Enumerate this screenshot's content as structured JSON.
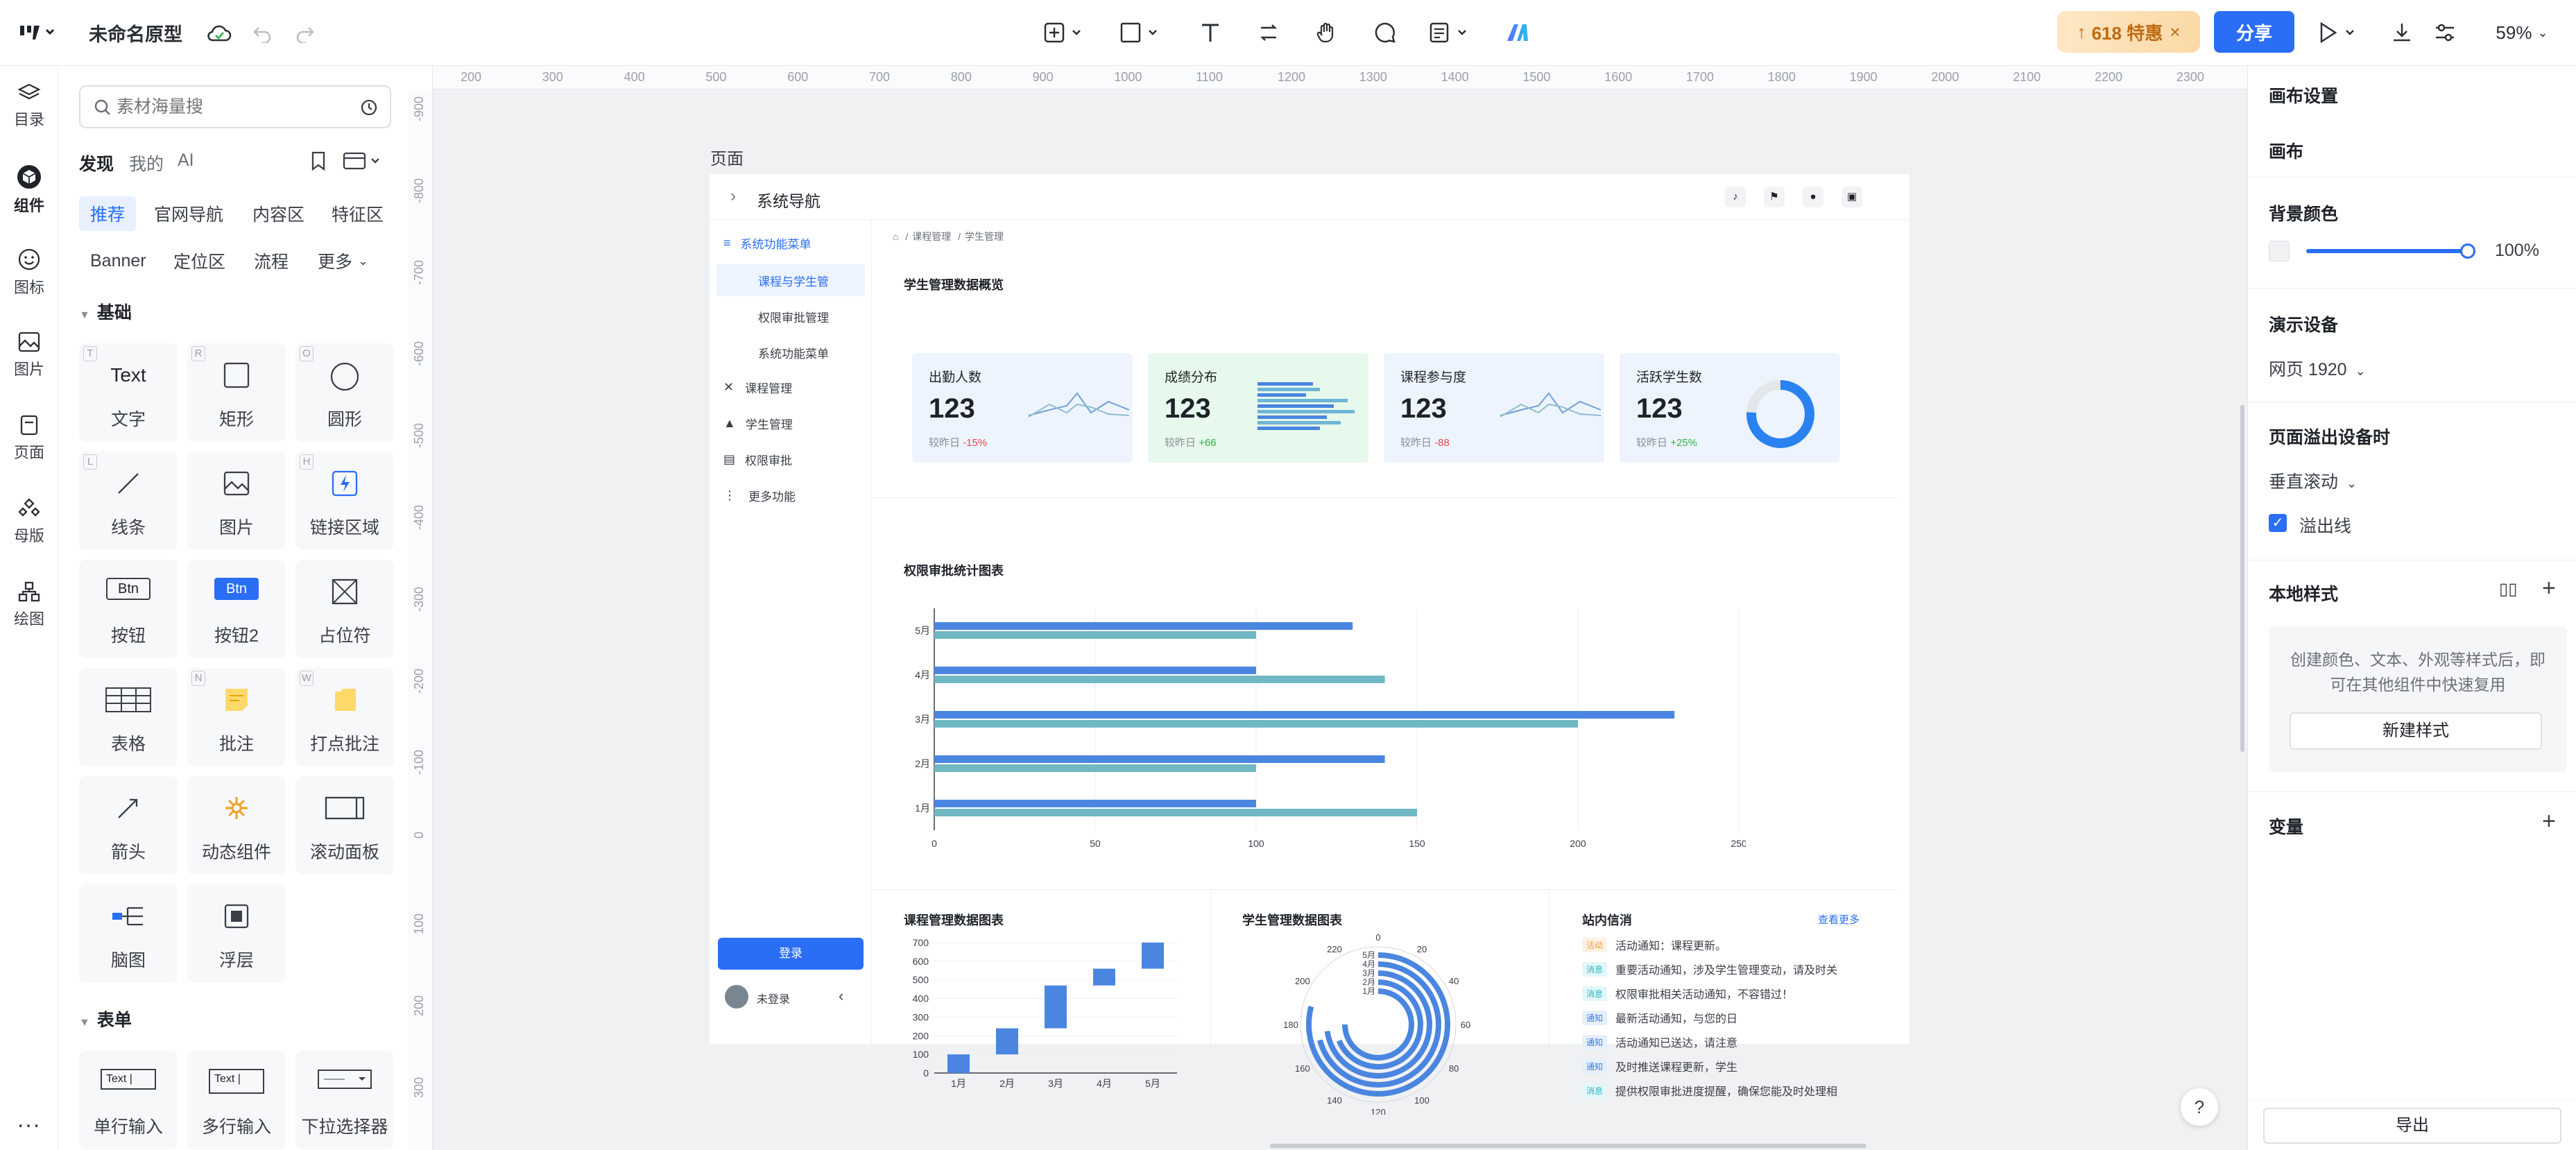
{
  "topbar": {
    "doc_title": "未命名原型",
    "promo_label": "618 特惠",
    "share_label": "分享",
    "zoom_label": "59%",
    "colors": {
      "accent": "#2a6ef5",
      "promo_bg": "#fde7c4",
      "promo_text": "#d9822b"
    }
  },
  "leftnav": {
    "items": [
      {
        "label": "目录",
        "icon": "layers-icon"
      },
      {
        "label": "组件",
        "icon": "cube-icon"
      },
      {
        "label": "图标",
        "icon": "smile-icon"
      },
      {
        "label": "图片",
        "icon": "image-icon"
      },
      {
        "label": "页面",
        "icon": "page-icon"
      },
      {
        "label": "母版",
        "icon": "master-icon"
      },
      {
        "label": "绘图",
        "icon": "draw-icon"
      }
    ],
    "more_label": "..."
  },
  "panel": {
    "search_placeholder": "素材海量搜",
    "tabs": [
      "发现",
      "我的",
      "AI"
    ],
    "chips_row1": [
      "推荐",
      "官网导航",
      "内容区",
      "特征区"
    ],
    "chips_row2": [
      "Banner",
      "定位区",
      "流程",
      "更多"
    ],
    "section_basic": "基础",
    "tiles": [
      {
        "icon_text": "Text",
        "label": "文字",
        "key": "T"
      },
      {
        "label": "矩形",
        "key": "R"
      },
      {
        "label": "圆形",
        "key": "O"
      },
      {
        "label": "线条",
        "key": "L"
      },
      {
        "label": "图片",
        "key": ""
      },
      {
        "label": "链接区域",
        "key": "H"
      },
      {
        "icon_text": "Btn",
        "label": "按钮",
        "key": ""
      },
      {
        "icon_text": "Btn",
        "label": "按钮2",
        "key": ""
      },
      {
        "label": "占位符",
        "key": ""
      },
      {
        "label": "表格",
        "key": ""
      },
      {
        "label": "批注",
        "key": "N"
      },
      {
        "label": "打点批注",
        "key": "W"
      },
      {
        "label": "箭头",
        "key": ""
      },
      {
        "label": "动态组件",
        "key": ""
      },
      {
        "label": "滚动面板",
        "key": ""
      },
      {
        "label": "脑图",
        "key": ""
      },
      {
        "label": "浮层",
        "key": ""
      }
    ],
    "section_form": "表单",
    "form_tiles": [
      {
        "icon_text": "Text |",
        "label": "单行输入"
      },
      {
        "icon_text": "Text |",
        "label": "多行输入"
      },
      {
        "label": "下拉选择器"
      }
    ]
  },
  "rulers": {
    "h_ticks": [
      "200",
      "300",
      "400",
      "500",
      "600",
      "700",
      "800",
      "900",
      "1000",
      "1100",
      "1200",
      "1300",
      "1400",
      "1500",
      "1600",
      "1700",
      "1800",
      "1900",
      "2000",
      "2100",
      "2200",
      "2300"
    ],
    "v_ticks": [
      "-900",
      "-800",
      "-700",
      "-600",
      "-500",
      "-400",
      "-300",
      "-200",
      "-100",
      "0",
      "100",
      "200",
      "300"
    ]
  },
  "canvas": {
    "page_label": "页面",
    "artboard": {
      "header_title": "系统导航",
      "sidebar": {
        "items": [
          {
            "label": "系统功能菜单",
            "active": true,
            "icon": "menu-icon"
          },
          {
            "label": "课程与学生管",
            "sub": true,
            "selected": true
          },
          {
            "label": "权限审批管理",
            "sub": true
          },
          {
            "label": "系统功能菜单",
            "sub": true
          },
          {
            "label": "课程管理",
            "icon": "close-icon"
          },
          {
            "label": "学生管理",
            "icon": "graduation-cap-icon"
          },
          {
            "label": "权限审批",
            "icon": "list-icon"
          },
          {
            "label": "更多功能",
            "icon": "more-vertical-icon"
          }
        ],
        "login_button": "登录",
        "user_label": "未登录"
      },
      "breadcrumb": [
        "课程管理",
        "学生管理"
      ],
      "overview_title": "学生管理数据概览",
      "cards": [
        {
          "title": "出勤人数",
          "value": "123",
          "compare": "较昨日",
          "delta": "-15%",
          "delta_color": "#e5484d",
          "bg": "#eef4fd"
        },
        {
          "title": "成绩分布",
          "value": "123",
          "compare": "较昨日",
          "delta": "+66",
          "delta_color": "#2fb344",
          "bg": "#e7f8ec"
        },
        {
          "title": "课程参与度",
          "value": "123",
          "compare": "较昨日",
          "delta": "-88",
          "delta_color": "#e5484d",
          "bg": "#eef4fd"
        },
        {
          "title": "活跃学生数",
          "value": "123",
          "compare": "较昨日",
          "delta": "+25%",
          "delta_color": "#2fb344",
          "bg": "#eef4fd"
        }
      ],
      "approval_chart": {
        "title": "权限审批统计图表",
        "categories": [
          "1月",
          "2月",
          "3月",
          "4月",
          "5月"
        ],
        "series_a": [
          100,
          140,
          230,
          100,
          130
        ],
        "series_b": [
          150,
          100,
          200,
          140,
          100
        ],
        "x_ticks": [
          "0",
          "50",
          "100",
          "150",
          "200",
          "250"
        ],
        "xlim": [
          0,
          250
        ]
      },
      "course_chart": {
        "title": "课程管理数据图表",
        "categories": [
          "1月",
          "2月",
          "3月",
          "4月",
          "5月"
        ],
        "ranges": [
          [
            0,
            100
          ],
          [
            100,
            240
          ],
          [
            240,
            470
          ],
          [
            470,
            560
          ],
          [
            560,
            700
          ]
        ],
        "y_ticks": [
          "0",
          "100",
          "200",
          "300",
          "400",
          "500",
          "600",
          "700"
        ],
        "ylim": [
          0,
          700
        ]
      },
      "student_chart": {
        "title": "学生管理数据图表",
        "ring_labels": [
          "5月",
          "4月",
          "3月",
          "2月",
          "1月"
        ],
        "angle_ticks": [
          "0",
          "20",
          "40",
          "60",
          "80",
          "100",
          "120",
          "140",
          "160",
          "180",
          "200",
          "220"
        ],
        "values": [
          190,
          170,
          175,
          165,
          180
        ],
        "max": 240
      },
      "notices": {
        "title": "站内信消",
        "more_label": "查看更多",
        "items": [
          {
            "tag": "活动",
            "tag_color": "#f59a4b",
            "tag_bg": "#fff1e3",
            "text": "活动通知：课程更新。"
          },
          {
            "tag": "消息",
            "tag_color": "#2ab6c4",
            "tag_bg": "#e2f7f9",
            "text": "重要活动通知，涉及学生管理变动，请及时关"
          },
          {
            "tag": "消息",
            "tag_color": "#2ab6c4",
            "tag_bg": "#e2f7f9",
            "text": "权限审批相关活动通知，不容错过！"
          },
          {
            "tag": "通知",
            "tag_color": "#3a7be8",
            "tag_bg": "#e6effd",
            "text": "最新活动通知，与您的日"
          },
          {
            "tag": "通知",
            "tag_color": "#3a7be8",
            "tag_bg": "#e6effd",
            "text": "活动通知已送达，请注意"
          },
          {
            "tag": "通知",
            "tag_color": "#3a7be8",
            "tag_bg": "#e6effd",
            "text": "及时推送课程更新，学生"
          },
          {
            "tag": "消息",
            "tag_color": "#2ab6c4",
            "tag_bg": "#e2f7f9",
            "text": "提供权限审批进度提醒，确保您能及时处理相"
          }
        ]
      }
    }
  },
  "rpanel": {
    "canvas_settings": "画布设置",
    "canvas_label": "画布",
    "bg_color_label": "背景颜色",
    "bg_opacity": "100%",
    "device_label": "演示设备",
    "device_value": "网页 1920",
    "overflow_label": "页面溢出设备时",
    "overflow_value": "垂直滚动",
    "overflow_line_label": "溢出线",
    "local_styles_label": "本地样式",
    "local_styles_hint": "创建颜色、文本、外观等样式后，即可在其他组件中快速复用",
    "new_style_button": "新建样式",
    "variables_label": "变量",
    "export_button": "导出"
  },
  "help_label": "?"
}
